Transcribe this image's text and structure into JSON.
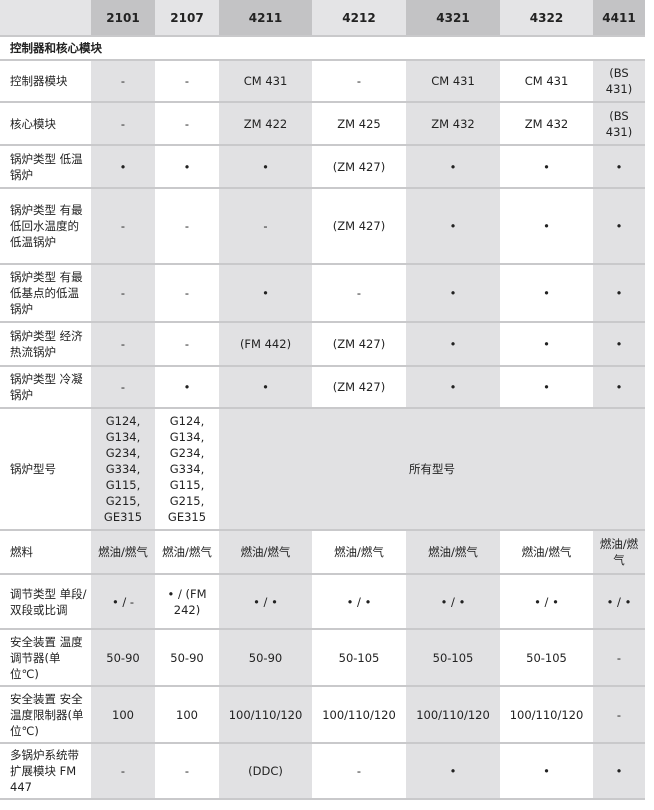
{
  "columns": [
    "",
    "2101",
    "2107",
    "4211",
    "4212",
    "4321",
    "4322",
    "4411"
  ],
  "section": "控制器和核心模块",
  "rows": [
    {
      "label": "控制器模块",
      "cells": [
        "-",
        "-",
        "CM 431",
        "-",
        "CM 431",
        "CM 431",
        "(BS 431)"
      ]
    },
    {
      "label": "核心模块",
      "cells": [
        "-",
        "-",
        "ZM 422",
        "ZM 425",
        "ZM 432",
        "ZM 432",
        "(BS 431)"
      ]
    },
    {
      "label": "锅炉类型 低温锅炉",
      "cells": [
        "•",
        "•",
        "•",
        "(ZM 427)",
        "•",
        "•",
        "•"
      ]
    },
    {
      "label": "锅炉类型 有最低回水温度的低温锅炉",
      "cells": [
        "-",
        "-",
        "-",
        "(ZM 427)",
        "•",
        "•",
        "•"
      ]
    },
    {
      "label": "锅炉类型 有最低基点的低温锅炉",
      "cells": [
        "-",
        "-",
        "•",
        "-",
        "•",
        "•",
        "•"
      ]
    },
    {
      "label": "锅炉类型 经济热流锅炉",
      "cells": [
        "-",
        "-",
        "(FM 442)",
        "(ZM 427)",
        "•",
        "•",
        "•"
      ]
    },
    {
      "label": "锅炉类型 冷凝锅炉",
      "cells": [
        "-",
        "•",
        "•",
        "(ZM 427)",
        "•",
        "•",
        "•"
      ]
    }
  ],
  "boiler_models": {
    "label": "锅炉型号",
    "c2101": "G124, G134, G234, G334, G115, G215, GE315",
    "c2107": "G124, G134, G234, G334, G115, G215, GE315",
    "rest": "所有型号"
  },
  "rows2": [
    {
      "label": "燃料",
      "cells": [
        "燃油/燃气",
        "燃油/燃气",
        "燃油/燃气",
        "燃油/燃气",
        "燃油/燃气",
        "燃油/燃气",
        "燃油/燃气"
      ]
    },
    {
      "label": "调节类型 单段/双段或比调",
      "cells": [
        "• / -",
        "• / (FM 242)",
        "• / •",
        "• / •",
        "• / •",
        "• / •",
        "• / •"
      ]
    },
    {
      "label": "安全装置 温度调节器(单位℃)",
      "cells": [
        "50-90",
        "50-90",
        "50-90",
        "50-105",
        "50-105",
        "50-105",
        "-"
      ]
    },
    {
      "label": "安全装置 安全温度限制器(单位℃)",
      "cells": [
        "100",
        "100",
        "100/110/120",
        "100/110/120",
        "100/110/120",
        "100/110/120",
        "-"
      ]
    },
    {
      "label": "多锅炉系统带扩展模块 FM 447",
      "cells": [
        "-",
        "-",
        "(DDC)",
        "-",
        "•",
        "•",
        "•"
      ]
    }
  ]
}
